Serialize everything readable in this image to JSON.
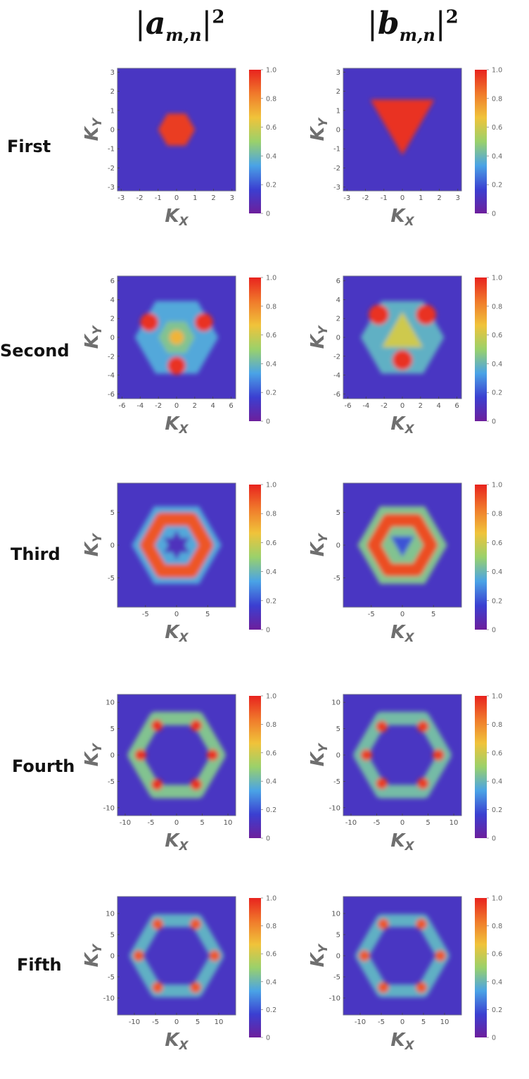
{
  "column_headers": [
    {
      "base": "a",
      "subscript": "m,n",
      "power": "2"
    },
    {
      "base": "b",
      "subscript": "m,n",
      "power": "2"
    }
  ],
  "rows": [
    "First",
    "Second",
    "Third",
    "Fourth",
    "Fifth"
  ],
  "axis_labels": {
    "x": "K",
    "x_sub": "X",
    "y": "K",
    "y_sub": "Y"
  },
  "colorbar": {
    "ticks": [
      "0",
      "0.2",
      "0.4",
      "0.6",
      "0.8",
      "1.0"
    ],
    "range": [
      0,
      1
    ],
    "colors": [
      "#6d1f9c",
      "#3b3fd1",
      "#4aa3e6",
      "#9ad16b",
      "#f0c33a",
      "#f07a2b",
      "#e8231e"
    ]
  },
  "chart_data": [
    {
      "type": "heatmap",
      "row": "First",
      "column": "|a_m,n|^2",
      "extent": 3.2,
      "xticks": [
        -3,
        -2,
        -1,
        0,
        1,
        2,
        3
      ],
      "yticks": [
        -3,
        -2,
        -1,
        0,
        1,
        2,
        3
      ],
      "features": [
        {
          "shape": "hexagon",
          "cx": 0,
          "cy": 0,
          "r": 1.0,
          "value": 0.95
        }
      ],
      "background": 0.12
    },
    {
      "type": "heatmap",
      "row": "First",
      "column": "|b_m,n|^2",
      "extent": 3.2,
      "xticks": [
        -3,
        -2,
        -1,
        0,
        1,
        2,
        3
      ],
      "yticks": [
        -3,
        -2,
        -1,
        0,
        1,
        2,
        3
      ],
      "features": [
        {
          "shape": "triangle-down",
          "cx": 0,
          "cy": 0.6,
          "r": 2.0,
          "value": 0.97
        }
      ],
      "background": 0.12
    },
    {
      "type": "heatmap",
      "row": "Second",
      "column": "|a_m,n|^2",
      "extent": 6.5,
      "xticks": [
        -6,
        -4,
        -2,
        0,
        2,
        4,
        6
      ],
      "yticks": [
        -6,
        -4,
        -2,
        0,
        2,
        4,
        6
      ],
      "features": [
        {
          "shape": "hexagon",
          "cx": 0,
          "cy": 0,
          "r": 4.6,
          "value": 0.35
        },
        {
          "shape": "hexagon",
          "cx": 0,
          "cy": 0,
          "r": 2.0,
          "value": 0.45
        },
        {
          "shape": "blob",
          "cx": -3.0,
          "cy": 1.6,
          "r": 1.0,
          "value": 0.97
        },
        {
          "shape": "blob",
          "cx": 3.0,
          "cy": 1.6,
          "r": 1.0,
          "value": 0.97
        },
        {
          "shape": "blob",
          "cx": 0,
          "cy": -3.0,
          "r": 1.0,
          "value": 0.97
        },
        {
          "shape": "blob",
          "cx": 0,
          "cy": 0,
          "r": 0.8,
          "value": 0.7
        }
      ],
      "background": 0.12
    },
    {
      "type": "heatmap",
      "row": "Second",
      "column": "|b_m,n|^2",
      "extent": 6.5,
      "xticks": [
        -6,
        -4,
        -2,
        0,
        2,
        4,
        6
      ],
      "yticks": [
        -6,
        -4,
        -2,
        0,
        2,
        4,
        6
      ],
      "features": [
        {
          "shape": "hexagon",
          "cx": 0,
          "cy": 0,
          "r": 4.6,
          "value": 0.38
        },
        {
          "shape": "triangle-up",
          "cx": 0,
          "cy": 0.2,
          "r": 2.6,
          "value": 0.6
        },
        {
          "shape": "blob",
          "cx": -2.6,
          "cy": 2.4,
          "r": 1.1,
          "value": 0.97
        },
        {
          "shape": "blob",
          "cx": 2.6,
          "cy": 2.4,
          "r": 1.1,
          "value": 0.97
        },
        {
          "shape": "blob",
          "cx": 0,
          "cy": -2.4,
          "r": 1.1,
          "value": 0.97
        }
      ],
      "background": 0.12
    },
    {
      "type": "heatmap",
      "row": "Third",
      "column": "|a_m,n|^2",
      "extent": 9.5,
      "xticks": [
        -5,
        0,
        5
      ],
      "yticks": [
        -5,
        0,
        5
      ],
      "features": [
        {
          "shape": "hexagon",
          "cx": 0,
          "cy": 0,
          "r": 7.2,
          "value": 0.35
        },
        {
          "shape": "ring",
          "cx": 0,
          "cy": 0,
          "r": 4.8,
          "value": 0.9
        },
        {
          "shape": "star",
          "cx": 0,
          "cy": 0,
          "r": 2.4,
          "value": 0.1
        }
      ],
      "background": 0.12
    },
    {
      "type": "heatmap",
      "row": "Third",
      "column": "|b_m,n|^2",
      "extent": 9.5,
      "xticks": [
        -5,
        0,
        5
      ],
      "yticks": [
        -5,
        0,
        5
      ],
      "features": [
        {
          "shape": "hexagon",
          "cx": 0,
          "cy": 0,
          "r": 7.2,
          "value": 0.45
        },
        {
          "shape": "ring",
          "cx": 0,
          "cy": 0,
          "r": 4.6,
          "value": 0.92
        },
        {
          "shape": "triangle-down",
          "cx": 0,
          "cy": 0.3,
          "r": 2.2,
          "value": 0.2
        }
      ],
      "background": 0.12
    },
    {
      "type": "heatmap",
      "row": "Fourth",
      "column": "|a_m,n|^2",
      "extent": 11.5,
      "xticks": [
        -10,
        -5,
        0,
        5,
        10
      ],
      "yticks": [
        -10,
        -5,
        0,
        5,
        10
      ],
      "features": [
        {
          "shape": "hexagon-ring",
          "cx": 0,
          "cy": 0,
          "r": 8.2,
          "value": 0.45
        },
        {
          "shape": "blob",
          "cx": -3.8,
          "cy": 5.6,
          "r": 1.1,
          "value": 0.97
        },
        {
          "shape": "blob",
          "cx": 3.8,
          "cy": 5.6,
          "r": 1.1,
          "value": 0.97
        },
        {
          "shape": "blob",
          "cx": -7.0,
          "cy": 0,
          "r": 1.1,
          "value": 0.97
        },
        {
          "shape": "blob",
          "cx": 7.0,
          "cy": 0,
          "r": 1.1,
          "value": 0.97
        },
        {
          "shape": "blob",
          "cx": -3.8,
          "cy": -5.6,
          "r": 1.1,
          "value": 0.97
        },
        {
          "shape": "blob",
          "cx": 3.8,
          "cy": -5.6,
          "r": 1.1,
          "value": 0.97
        }
      ],
      "background": 0.12
    },
    {
      "type": "heatmap",
      "row": "Fourth",
      "column": "|b_m,n|^2",
      "extent": 11.5,
      "xticks": [
        -10,
        -5,
        0,
        5,
        10
      ],
      "yticks": [
        -10,
        -5,
        0,
        5,
        10
      ],
      "features": [
        {
          "shape": "hexagon-ring",
          "cx": 0,
          "cy": 0,
          "r": 8.2,
          "value": 0.42
        },
        {
          "shape": "blob",
          "cx": -4.0,
          "cy": 5.4,
          "r": 1.1,
          "value": 0.95
        },
        {
          "shape": "blob",
          "cx": 4.0,
          "cy": 5.4,
          "r": 1.1,
          "value": 0.95
        },
        {
          "shape": "blob",
          "cx": -7.0,
          "cy": 0,
          "r": 1.1,
          "value": 0.95
        },
        {
          "shape": "blob",
          "cx": 7.0,
          "cy": 0,
          "r": 1.1,
          "value": 0.95
        },
        {
          "shape": "blob",
          "cx": -4.0,
          "cy": -5.4,
          "r": 1.1,
          "value": 0.95
        },
        {
          "shape": "blob",
          "cx": 4.0,
          "cy": -5.4,
          "r": 1.1,
          "value": 0.95
        }
      ],
      "background": 0.12
    },
    {
      "type": "heatmap",
      "row": "Fifth",
      "column": "|a_m,n|^2",
      "extent": 14,
      "xticks": [
        -10,
        -5,
        0,
        5,
        10
      ],
      "yticks": [
        -10,
        -5,
        0,
        5,
        10
      ],
      "features": [
        {
          "shape": "hexagon-ring",
          "cx": 0,
          "cy": 0,
          "r": 9.6,
          "value": 0.38
        },
        {
          "shape": "blob",
          "cx": -4.5,
          "cy": 7.5,
          "r": 1.3,
          "value": 0.9
        },
        {
          "shape": "blob",
          "cx": 4.5,
          "cy": 7.5,
          "r": 1.3,
          "value": 0.9
        },
        {
          "shape": "blob",
          "cx": -9.0,
          "cy": 0,
          "r": 1.3,
          "value": 0.9
        },
        {
          "shape": "blob",
          "cx": 9.0,
          "cy": 0,
          "r": 1.3,
          "value": 0.9
        },
        {
          "shape": "blob",
          "cx": -4.5,
          "cy": -7.5,
          "r": 1.3,
          "value": 0.9
        },
        {
          "shape": "blob",
          "cx": 4.5,
          "cy": -7.5,
          "r": 1.3,
          "value": 0.9
        }
      ],
      "background": 0.12
    },
    {
      "type": "heatmap",
      "row": "Fifth",
      "column": "|b_m,n|^2",
      "extent": 14,
      "xticks": [
        -10,
        -5,
        0,
        5,
        10
      ],
      "yticks": [
        -10,
        -5,
        0,
        5,
        10
      ],
      "features": [
        {
          "shape": "hexagon-ring",
          "cx": 0,
          "cy": 0,
          "r": 9.6,
          "value": 0.38
        },
        {
          "shape": "blob",
          "cx": -4.5,
          "cy": 7.5,
          "r": 1.3,
          "value": 0.9
        },
        {
          "shape": "blob",
          "cx": 4.5,
          "cy": 7.5,
          "r": 1.3,
          "value": 0.9
        },
        {
          "shape": "blob",
          "cx": -9.0,
          "cy": 0,
          "r": 1.3,
          "value": 0.9
        },
        {
          "shape": "blob",
          "cx": 9.0,
          "cy": 0,
          "r": 1.3,
          "value": 0.9
        },
        {
          "shape": "blob",
          "cx": -4.5,
          "cy": -7.5,
          "r": 1.3,
          "value": 0.9
        },
        {
          "shape": "blob",
          "cx": 4.5,
          "cy": -7.5,
          "r": 1.3,
          "value": 0.9
        }
      ],
      "background": 0.12
    }
  ]
}
